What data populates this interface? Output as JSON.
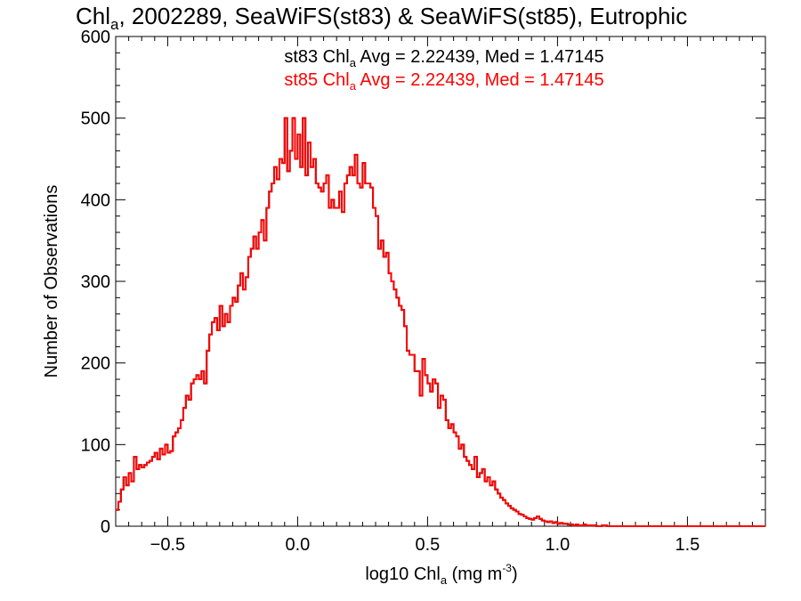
{
  "chart_data": {
    "type": "histogram-step",
    "title": {
      "pre": "Chl",
      "sub": "a",
      "post": ", 2002289, SeaWiFS(st83) & SeaWiFS(st85), Eutrophic"
    },
    "xlabel": {
      "pre": "log10 Chl",
      "sub": "a",
      "post": " (mg m",
      "sup": "-3",
      "end": ")"
    },
    "ylabel": "Number of Observations",
    "xlim": [
      -0.7,
      1.8
    ],
    "ylim": [
      0,
      600
    ],
    "grid": false,
    "x_ticks": [
      -0.5,
      0.0,
      0.5,
      1.0,
      1.5
    ],
    "x_tick_labels": [
      "−0.5",
      "0.0",
      "0.5",
      "1.0",
      "1.5"
    ],
    "y_ticks": [
      0,
      100,
      200,
      300,
      400,
      500,
      600
    ],
    "y_tick_labels": [
      "0",
      "100",
      "200",
      "300",
      "400",
      "500",
      "600"
    ],
    "annotations": [
      {
        "pre": "st83 Chl",
        "sub": "a",
        "post": " Avg = 2.22439, Med = 1.47145",
        "color": "#000000"
      },
      {
        "pre": "st85 Chl",
        "sub": "a",
        "post": " Avg = 2.22439, Med = 1.47145",
        "color": "#ff0000"
      }
    ],
    "series": [
      {
        "name": "st83",
        "color": "#000000"
      },
      {
        "name": "st85",
        "color": "#ff0000"
      }
    ],
    "bin_start": -0.7,
    "bin_width": 0.01,
    "counts": [
      20,
      30,
      45,
      60,
      50,
      65,
      55,
      85,
      70,
      75,
      72,
      75,
      78,
      80,
      85,
      90,
      82,
      95,
      88,
      100,
      90,
      92,
      110,
      115,
      120,
      130,
      145,
      160,
      155,
      175,
      180,
      185,
      180,
      190,
      175,
      215,
      235,
      250,
      255,
      240,
      270,
      245,
      260,
      250,
      270,
      280,
      275,
      295,
      310,
      290,
      305,
      330,
      340,
      355,
      340,
      360,
      375,
      350,
      390,
      410,
      420,
      440,
      425,
      450,
      445,
      500,
      435,
      460,
      500,
      450,
      480,
      440,
      500,
      430,
      470,
      440,
      450,
      420,
      415,
      410,
      420,
      430,
      390,
      400,
      390,
      390,
      410,
      385,
      420,
      430,
      440,
      430,
      455,
      420,
      415,
      445,
      420,
      420,
      415,
      390,
      380,
      340,
      350,
      330,
      335,
      310,
      300,
      290,
      280,
      270,
      265,
      245,
      215,
      210,
      210,
      190,
      190,
      160,
      205,
      185,
      175,
      165,
      180,
      175,
      145,
      160,
      155,
      130,
      120,
      125,
      115,
      110,
      95,
      100,
      85,
      80,
      75,
      70,
      85,
      60,
      65,
      70,
      55,
      60,
      50,
      55,
      45,
      40,
      35,
      32,
      28,
      25,
      22,
      20,
      18,
      15,
      14,
      12,
      10,
      9,
      8,
      10,
      12,
      9,
      7,
      6,
      5,
      6,
      4,
      5,
      3,
      4,
      3,
      3,
      2,
      2,
      1,
      2,
      1,
      1,
      2,
      1,
      1,
      1,
      1,
      0,
      0,
      1,
      1,
      0,
      0,
      0,
      0,
      0,
      0,
      0,
      0,
      0,
      0,
      0,
      0,
      0,
      0,
      0,
      0,
      0,
      0,
      0,
      0,
      0,
      0,
      0,
      0,
      0,
      0,
      0,
      0,
      0,
      0,
      0,
      0,
      0,
      0,
      0,
      0,
      0,
      0,
      0,
      0,
      0,
      0,
      0,
      0,
      0,
      0,
      0,
      0,
      0,
      0,
      0,
      0,
      0,
      0,
      0,
      0,
      0,
      0,
      0,
      0,
      0,
      0,
      0,
      0,
      0,
      0,
      0,
      0,
      0,
      0,
      0,
      0,
      0,
      0,
      0,
      0,
      0,
      0,
      0
    ]
  }
}
